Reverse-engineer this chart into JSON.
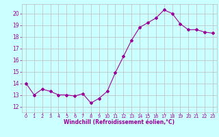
{
  "x": [
    0,
    1,
    2,
    3,
    4,
    5,
    6,
    7,
    8,
    9,
    10,
    11,
    12,
    13,
    14,
    15,
    16,
    17,
    18,
    19,
    20,
    21,
    22,
    23
  ],
  "y": [
    14.0,
    13.0,
    13.5,
    13.3,
    13.0,
    13.0,
    12.9,
    13.1,
    12.3,
    12.7,
    13.3,
    14.9,
    16.3,
    17.7,
    18.8,
    19.2,
    19.6,
    20.3,
    20.0,
    19.1,
    18.6,
    18.6,
    18.4,
    18.3
  ],
  "line_color": "#990099",
  "marker": "D",
  "marker_size": 2,
  "bg_color": "#ccffff",
  "grid_color": "#bbbbbb",
  "xlabel": "Windchill (Refroidissement éolien,°C)",
  "xlabel_color": "#990099",
  "tick_color": "#990099",
  "ylim": [
    11.5,
    20.8
  ],
  "yticks": [
    12,
    13,
    14,
    15,
    16,
    17,
    18,
    19,
    20
  ],
  "xlim": [
    -0.5,
    23.5
  ],
  "xticks": [
    0,
    1,
    2,
    3,
    4,
    5,
    6,
    7,
    8,
    9,
    10,
    11,
    12,
    13,
    14,
    15,
    16,
    17,
    18,
    19,
    20,
    21,
    22,
    23
  ],
  "xlabel_fontsize": 5.5,
  "xtick_fontsize": 4.8,
  "ytick_fontsize": 5.5,
  "xlabel_fontweight": "bold"
}
